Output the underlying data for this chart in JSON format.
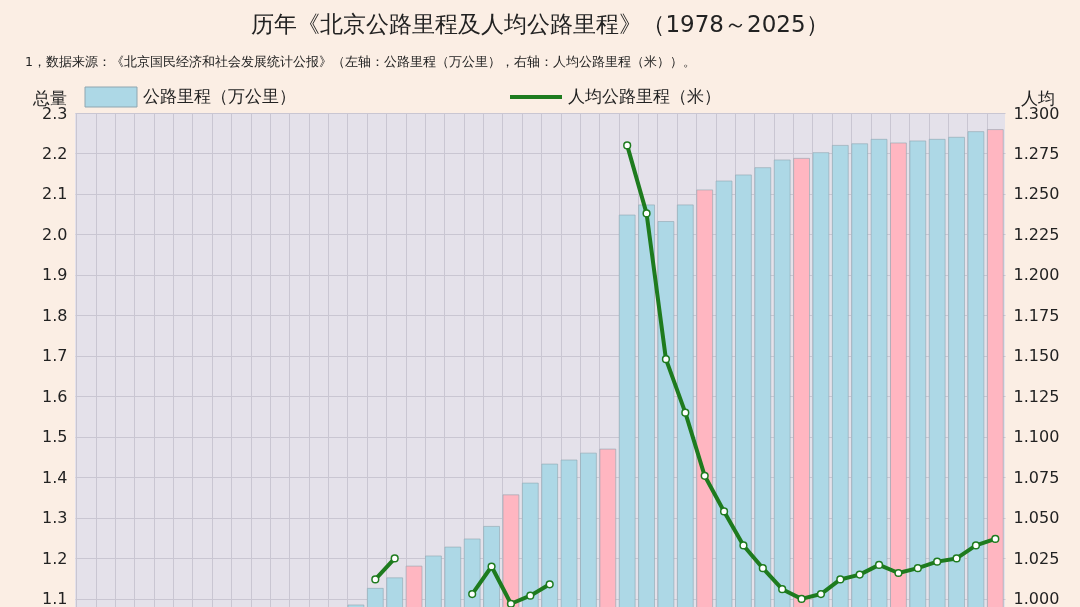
{
  "chart_data": {
    "type": "bar",
    "title": "历年《北京公路里程及人均公路里程》（1978～2025）",
    "annotations": [
      "1，数据来源：《北京国民经济和社会发展统计公报》（左轴：公路里程（万公里），右轴：人均公路里程（米））。"
    ],
    "ylabel": "总量",
    "y2label": "人均",
    "categories": [
      null,
      null,
      null,
      null,
      null,
      null,
      null,
      null,
      null,
      null,
      null,
      null,
      null,
      null,
      null,
      null,
      null,
      null,
      null,
      null,
      null,
      null,
      null,
      null,
      null,
      null,
      null,
      null,
      null,
      null,
      null,
      null,
      null,
      null,
      null,
      null,
      null,
      null,
      null,
      null,
      null,
      null,
      null,
      null,
      null,
      null,
      null,
      null
    ],
    "series": [
      {
        "name": "公路里程（万公里）",
        "color": "#add8e6",
        "colors": [
          "#add8e6",
          "#add8e6",
          "#ffb6c1",
          "#add8e6",
          "#add8e6",
          "#add8e6",
          "#add8e6",
          "#ffb6c1",
          "#add8e6",
          "#add8e6",
          "#add8e6",
          "#add8e6",
          "#ffb6c1",
          "#add8e6",
          "#add8e6",
          "#add8e6",
          "#add8e6",
          "#ffb6c1",
          "#add8e6",
          "#add8e6",
          "#add8e6",
          "#add8e6",
          "#ffb6c1",
          "#add8e6",
          "#add8e6",
          "#add8e6",
          "#add8e6",
          "#ffb6c1",
          "#add8e6",
          "#add8e6",
          "#add8e6",
          "#add8e6",
          "#ffb6c1",
          "#add8e6",
          "#add8e6",
          "#add8e6",
          "#add8e6",
          "#ffb6c1",
          "#add8e6",
          "#add8e6",
          "#add8e6",
          "#add8e6",
          "#ffb6c1",
          "#add8e6",
          "#add8e6",
          "#add8e6",
          "#add8e6",
          "#ffb6c1"
        ],
        "values": [
          null,
          null,
          null,
          null,
          null,
          null,
          null,
          null,
          null,
          null,
          null,
          null,
          null,
          null,
          1.085,
          1.126,
          1.152,
          1.181,
          1.206,
          1.228,
          1.248,
          1.279,
          1.357,
          1.386,
          1.433,
          1.443,
          1.46,
          1.47,
          2.048,
          2.073,
          2.032,
          2.073,
          2.11,
          2.132,
          2.147,
          2.165,
          2.184,
          2.188,
          2.202,
          2.22,
          2.224,
          2.235,
          2.226,
          2.231,
          2.235,
          2.24,
          2.254,
          2.259
        ]
      },
      {
        "name": "人均公路里程（米）",
        "type": "line",
        "axis": "y2",
        "color": "#1e7b1e",
        "marker": "circle",
        "values": [
          null,
          null,
          null,
          null,
          null,
          null,
          null,
          null,
          null,
          null,
          null,
          null,
          null,
          null,
          null,
          1.012,
          1.025,
          null,
          null,
          null,
          1.003,
          1.02,
          0.997,
          1.002,
          1.009,
          null,
          null,
          null,
          1.28,
          1.238,
          1.148,
          1.115,
          1.076,
          1.054,
          1.033,
          1.019,
          1.006,
          1.0,
          1.003,
          1.012,
          1.015,
          1.021,
          1.016,
          1.019,
          1.023,
          1.025,
          1.033,
          1.037
        ]
      }
    ],
    "ylim": [
      1.08,
      2.3
    ],
    "yticks": [
      {
        "value": 1.1,
        "label": "1.1"
      },
      {
        "value": 1.2,
        "label": "1.2"
      },
      {
        "value": 1.3,
        "label": "1.3"
      },
      {
        "value": 1.4,
        "label": "1.4"
      },
      {
        "value": 1.5,
        "label": "1.5"
      },
      {
        "value": 1.6,
        "label": "1.6"
      },
      {
        "value": 1.7,
        "label": "1.7"
      },
      {
        "value": 1.8,
        "label": "1.8"
      },
      {
        "value": 1.9,
        "label": "1.9"
      },
      {
        "value": 2.0,
        "label": "2.0"
      },
      {
        "value": 2.1,
        "label": "2.1"
      },
      {
        "value": 2.2,
        "label": "2.2"
      },
      {
        "value": 2.3,
        "label": "2.3"
      }
    ],
    "y2lim": [
      0.995,
      1.3
    ],
    "y2ticks": [
      {
        "value": 1.0,
        "label": "1.000"
      },
      {
        "value": 1.025,
        "label": "1.025"
      },
      {
        "value": 1.05,
        "label": "1.050"
      },
      {
        "value": 1.075,
        "label": "1.075"
      },
      {
        "value": 1.1,
        "label": "1.100"
      },
      {
        "value": 1.125,
        "label": "1.125"
      },
      {
        "value": 1.15,
        "label": "1.150"
      },
      {
        "value": 1.175,
        "label": "1.175"
      },
      {
        "value": 1.2,
        "label": "1.200"
      },
      {
        "value": 1.225,
        "label": "1.225"
      },
      {
        "value": 1.25,
        "label": "1.250"
      },
      {
        "value": 1.275,
        "label": "1.275"
      },
      {
        "value": 1.3,
        "label": "1.300"
      }
    ],
    "grid": true,
    "legend": "top"
  }
}
